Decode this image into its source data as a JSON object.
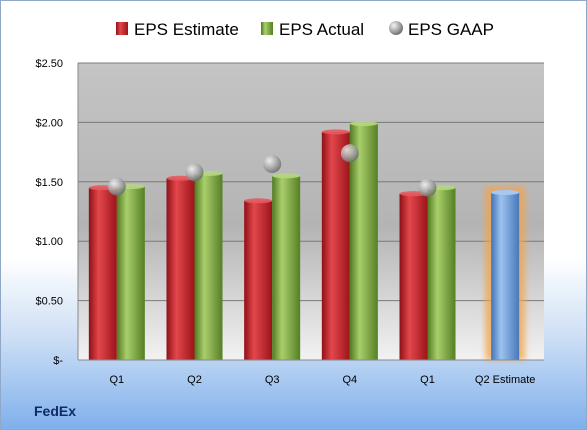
{
  "brand": "FedEx",
  "chart_data": {
    "type": "bar",
    "title": "",
    "xlabel": "",
    "ylabel": "",
    "categories": [
      "Q1",
      "Q2",
      "Q3",
      "Q4",
      "Q1",
      "Q2 Estimate"
    ],
    "ylim": [
      0,
      2.5
    ],
    "yticks": [
      {
        "value": 0,
        "label": "$-"
      },
      {
        "value": 0.5,
        "label": "$0.50"
      },
      {
        "value": 1.0,
        "label": "$1.00"
      },
      {
        "value": 1.5,
        "label": "$1.50"
      },
      {
        "value": 2.0,
        "label": "$2.00"
      },
      {
        "value": 2.5,
        "label": "$2.50"
      }
    ],
    "grid": true,
    "legend_position": "top",
    "series": [
      {
        "name": "EPS Estimate",
        "kind": "bar",
        "color": "#c8222a",
        "values": [
          1.45,
          1.53,
          1.34,
          1.92,
          1.4,
          null
        ]
      },
      {
        "name": "EPS Actual",
        "kind": "bar",
        "color": "#7aa53a",
        "values": [
          1.46,
          1.57,
          1.55,
          1.99,
          1.45,
          null
        ]
      },
      {
        "name": "EPS GAAP",
        "kind": "marker",
        "color": "#a8a8a8",
        "values": [
          1.46,
          1.58,
          1.65,
          1.74,
          1.45,
          null
        ]
      }
    ],
    "estimate_bar": {
      "category": "Q2 Estimate",
      "value": 1.41,
      "color": "#6f9fd8",
      "glow": "#f5a34a"
    }
  }
}
